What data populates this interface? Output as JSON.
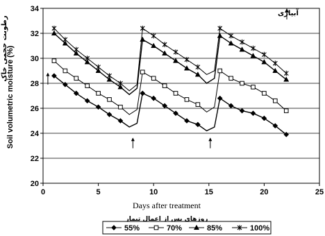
{
  "chart_data": {
    "type": "line",
    "xlabel": "Days after treatment",
    "xlabel_fa": "روزهای پس از اعمال تیمار",
    "ylabel": "Soil volumetric moisture (%)",
    "ylabel_fa": "رطوبت حجمی خاک",
    "xlim": [
      0,
      25
    ],
    "ylim": [
      20,
      34
    ],
    "xticks": [
      0,
      5,
      10,
      15,
      20,
      25
    ],
    "yticks": [
      20,
      22,
      24,
      26,
      28,
      30,
      32,
      34
    ],
    "grid": "horizontal",
    "legend_position": "bottom",
    "irrigation_label": "آبیاری",
    "irrigation_days": [
      1,
      8,
      15
    ],
    "series": [
      {
        "name": "55%",
        "marker": "diamond",
        "x": [
          1,
          2,
          3,
          4,
          5,
          6,
          7,
          7.8,
          8.5,
          9,
          10,
          11,
          12,
          13,
          14,
          14.8,
          15.5,
          16,
          17,
          18,
          19,
          20,
          21,
          22
        ],
        "y": [
          28.6,
          27.9,
          27.2,
          26.6,
          26.1,
          25.5,
          25.0,
          24.5,
          24.8,
          27.2,
          26.8,
          26.2,
          25.6,
          25.0,
          24.7,
          24.2,
          24.5,
          26.8,
          26.2,
          25.8,
          25.6,
          25.2,
          24.6,
          23.9
        ]
      },
      {
        "name": "70%",
        "marker": "square",
        "x": [
          1,
          2,
          3,
          4,
          5,
          6,
          7,
          7.8,
          8.5,
          9,
          10,
          11,
          12,
          13,
          14,
          14.8,
          15.5,
          16,
          17,
          18,
          19,
          20,
          21,
          22
        ],
        "y": [
          29.8,
          29.0,
          28.4,
          27.8,
          27.2,
          26.7,
          26.1,
          25.5,
          25.9,
          28.9,
          28.4,
          27.8,
          27.2,
          26.7,
          26.3,
          25.7,
          26.1,
          29.0,
          28.4,
          28.0,
          27.7,
          27.2,
          26.6,
          25.8
        ]
      },
      {
        "name": "85%",
        "marker": "triangle",
        "x": [
          1,
          2,
          3,
          4,
          5,
          6,
          7,
          7.8,
          8.5,
          9,
          10,
          11,
          12,
          13,
          14,
          14.8,
          15.5,
          16,
          17,
          18,
          19,
          20,
          21,
          22
        ],
        "y": [
          32.0,
          31.2,
          30.4,
          29.7,
          29.0,
          28.3,
          27.7,
          27.1,
          27.6,
          31.5,
          31.0,
          30.4,
          29.8,
          29.2,
          28.7,
          28.0,
          28.4,
          31.8,
          31.2,
          30.7,
          30.2,
          29.7,
          29.0,
          28.3
        ]
      },
      {
        "name": "100%",
        "marker": "asterisk",
        "x": [
          1,
          2,
          3,
          4,
          5,
          6,
          7,
          7.8,
          8.5,
          9,
          10,
          11,
          12,
          13,
          14,
          14.8,
          15.5,
          16,
          17,
          18,
          19,
          20,
          21,
          22
        ],
        "y": [
          32.4,
          31.5,
          30.7,
          30.0,
          29.3,
          28.6,
          28.0,
          27.4,
          27.9,
          32.4,
          31.8,
          31.1,
          30.5,
          29.9,
          29.3,
          28.7,
          29.0,
          32.4,
          31.8,
          31.3,
          30.8,
          30.3,
          29.6,
          28.8
        ]
      }
    ]
  }
}
